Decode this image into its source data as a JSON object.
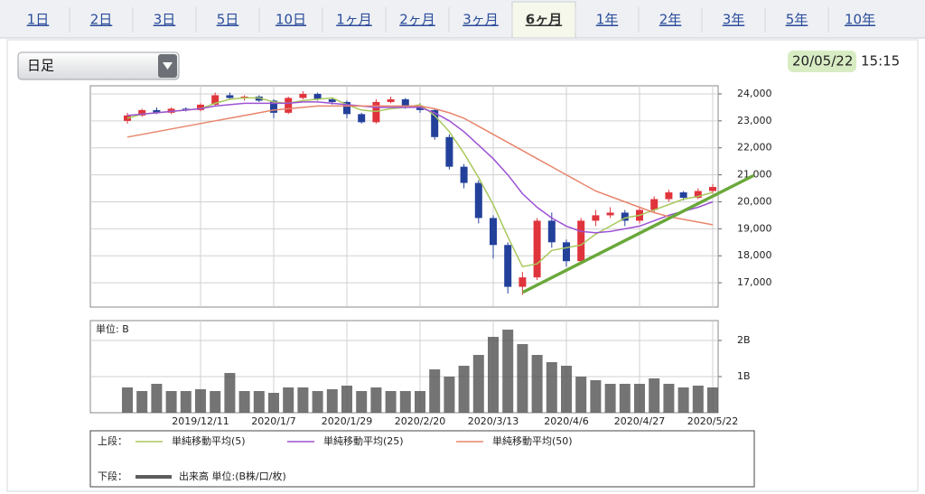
{
  "tabs": [
    {
      "label": "1日"
    },
    {
      "label": "2日"
    },
    {
      "label": "3日"
    },
    {
      "label": "5日"
    },
    {
      "label": "10日"
    },
    {
      "label": "1ヶ月"
    },
    {
      "label": "2ヶ月"
    },
    {
      "label": "3ヶ月"
    },
    {
      "label": "6ヶ月",
      "selected": true
    },
    {
      "label": "1年"
    },
    {
      "label": "2年"
    },
    {
      "label": "3年"
    },
    {
      "label": "5年"
    },
    {
      "label": "10年"
    }
  ],
  "dropdown": {
    "label": "日足"
  },
  "timestamp": {
    "date": "20/05/22",
    "time": "15:15"
  },
  "chart_data": [
    {
      "type": "candlestick",
      "open": [
        23000,
        23200,
        23400,
        23300,
        23450,
        23400,
        23600,
        23950,
        23850,
        23900,
        23750,
        23300,
        23850,
        24000,
        23800,
        23700,
        23250,
        22950,
        23700,
        23800,
        23550,
        23400,
        22400,
        21300,
        20700,
        19400,
        18400,
        16850,
        17200,
        19300,
        18500,
        17800,
        19300,
        19500,
        19600,
        19300,
        19700,
        20100,
        20350,
        20150,
        20400
      ],
      "high": [
        23300,
        23450,
        23500,
        23500,
        23500,
        23650,
        24050,
        24050,
        23950,
        23950,
        23800,
        23900,
        24100,
        24050,
        23850,
        23750,
        23300,
        23800,
        23900,
        23850,
        23650,
        23450,
        22500,
        21400,
        20800,
        19500,
        18500,
        17400,
        19400,
        19600,
        18600,
        19400,
        19700,
        19800,
        19700,
        19800,
        20200,
        20450,
        20400,
        20500,
        20650
      ],
      "low": [
        22900,
        23150,
        23250,
        23250,
        23350,
        23350,
        23550,
        23800,
        23750,
        23700,
        23100,
        23250,
        23800,
        23750,
        23600,
        23100,
        22900,
        22900,
        23650,
        23450,
        23300,
        22300,
        21200,
        20500,
        19200,
        17900,
        16600,
        16550,
        17100,
        18300,
        17600,
        17700,
        19100,
        19400,
        19100,
        19200,
        19600,
        20000,
        20050,
        20100,
        20300
      ],
      "close": [
        23200,
        23400,
        23300,
        23450,
        23400,
        23600,
        23950,
        23850,
        23900,
        23750,
        23300,
        23850,
        24000,
        23800,
        23700,
        23250,
        22950,
        23700,
        23800,
        23550,
        23400,
        22400,
        21300,
        20700,
        19400,
        18400,
        16850,
        17200,
        19300,
        18500,
        17800,
        19300,
        19500,
        19600,
        19300,
        19700,
        20100,
        20350,
        20150,
        20400,
        20550
      ],
      "up_color": "#e0343c",
      "down_color": "#23419b",
      "series": [
        {
          "name": "単純移動平均(5)",
          "color": "#a9c85c",
          "values": [
            23100,
            23250,
            23300,
            23350,
            23400,
            23450,
            23650,
            23800,
            23850,
            23850,
            23700,
            23650,
            23750,
            23800,
            23850,
            23600,
            23400,
            23350,
            23450,
            23500,
            23600,
            23200,
            22600,
            21800,
            20900,
            19900,
            18700,
            17600,
            17700,
            18200,
            18300,
            18400,
            18800,
            19100,
            19400,
            19500,
            19700,
            19900,
            20100,
            20200,
            20350
          ]
        },
        {
          "name": "単純移動平均(25)",
          "color": "#9d52d4",
          "values": [
            23200,
            23250,
            23300,
            23350,
            23400,
            23450,
            23550,
            23600,
            23650,
            23650,
            23650,
            23650,
            23700,
            23700,
            23650,
            23600,
            23550,
            23500,
            23500,
            23500,
            23500,
            23300,
            23000,
            22600,
            22100,
            21600,
            21000,
            20300,
            19800,
            19400,
            19100,
            18900,
            18850,
            18900,
            19000,
            19100,
            19300,
            19500,
            19650,
            19800,
            20000
          ]
        },
        {
          "name": "単純移動平均(50)",
          "color": "#e8856c",
          "values": [
            22400,
            22500,
            22600,
            22700,
            22800,
            22900,
            23000,
            23100,
            23200,
            23300,
            23400,
            23450,
            23500,
            23550,
            23550,
            23550,
            23550,
            23550,
            23550,
            23550,
            23550,
            23450,
            23300,
            23100,
            22800,
            22500,
            22200,
            21900,
            21600,
            21300,
            21000,
            20700,
            20400,
            20200,
            20000,
            19800,
            19600,
            19450,
            19350,
            19250,
            19150
          ]
        }
      ],
      "legend_label": "上段：",
      "ylim": [
        16100,
        24300
      ],
      "yticks": [
        {
          "value": 17000,
          "label": "17,000"
        },
        {
          "value": 18000,
          "label": "18,000"
        },
        {
          "value": 19000,
          "label": "19,000"
        },
        {
          "value": 20000,
          "label": "20,000"
        },
        {
          "value": 21000,
          "label": "21,000"
        },
        {
          "value": 22000,
          "label": "22,000"
        },
        {
          "value": 23000,
          "label": "23,000"
        },
        {
          "value": 24000,
          "label": "24,000"
        }
      ],
      "grid": true
    },
    {
      "type": "bar",
      "title": "単位: B",
      "categories": [
        null,
        null,
        null,
        null,
        null,
        "2019/12/11",
        null,
        null,
        null,
        null,
        "2020/1/7",
        null,
        null,
        null,
        null,
        "2020/1/29",
        null,
        null,
        null,
        null,
        "2020/2/20",
        null,
        null,
        null,
        null,
        "2020/3/13",
        null,
        null,
        null,
        null,
        "2020/4/6",
        null,
        null,
        null,
        null,
        "2020/4/27",
        null,
        null,
        null,
        null,
        "2020/5/22"
      ],
      "series": [
        {
          "name": "出来高 単位:(B株/口/枚)",
          "color": "#5c5c5c",
          "values": [
            0.7,
            0.6,
            0.8,
            0.6,
            0.6,
            0.65,
            0.6,
            1.1,
            0.6,
            0.6,
            0.55,
            0.7,
            0.7,
            0.6,
            0.65,
            0.75,
            0.6,
            0.7,
            0.6,
            0.6,
            0.6,
            1.2,
            1.0,
            1.3,
            1.6,
            2.1,
            2.3,
            1.9,
            1.6,
            1.4,
            1.3,
            1.0,
            0.9,
            0.8,
            0.8,
            0.8,
            0.95,
            0.8,
            0.7,
            0.75,
            0.7
          ]
        }
      ],
      "legend_label": "下段：",
      "ylim": [
        0,
        2.55
      ],
      "yticks": [
        {
          "value": 1,
          "label": "1B"
        },
        {
          "value": 2,
          "label": "2B"
        }
      ],
      "grid": true
    }
  ]
}
